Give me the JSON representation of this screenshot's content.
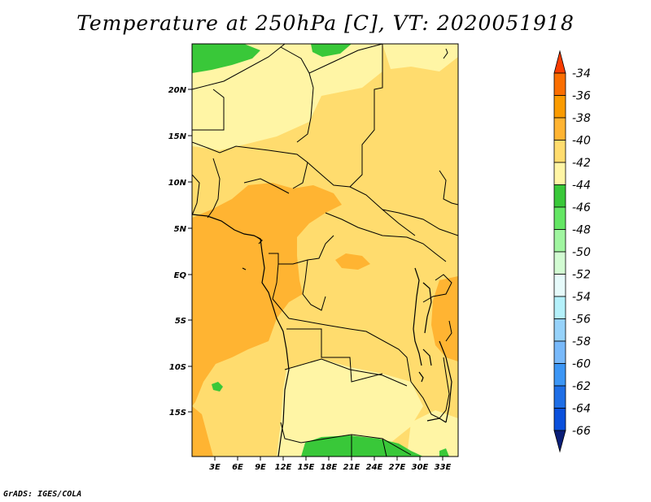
{
  "title": "Temperature at 250hPa [C], VT: 2020051918",
  "credit": "GrADS: IGES/COLA",
  "map": {
    "lat_labels": [
      "20N",
      "15N",
      "10N",
      "5N",
      "EQ",
      "5S",
      "10S",
      "15S"
    ],
    "lon_labels": [
      "3E",
      "6E",
      "9E",
      "12E",
      "15E",
      "18E",
      "21E",
      "24E",
      "27E",
      "30E",
      "33E"
    ]
  },
  "colorbar": {
    "levels": [
      "-34",
      "-36",
      "-38",
      "-40",
      "-42",
      "-44",
      "-46",
      "-48",
      "-50",
      "-52",
      "-54",
      "-56",
      "-58",
      "-60",
      "-62",
      "-64",
      "-66"
    ],
    "colors": [
      "#fa3c00",
      "#fa6e00",
      "#fa9b00",
      "#ffb432",
      "#ffdc6e",
      "#fff5a5",
      "#39c839",
      "#64e664",
      "#a0f5a0",
      "#d2fbd2",
      "#e6fafa",
      "#b4f0fa",
      "#96d2fa",
      "#78b9fa",
      "#3c96f5",
      "#1e6ee6",
      "#0a50dc",
      "#0a1e78",
      "#e1dcf5"
    ]
  }
}
